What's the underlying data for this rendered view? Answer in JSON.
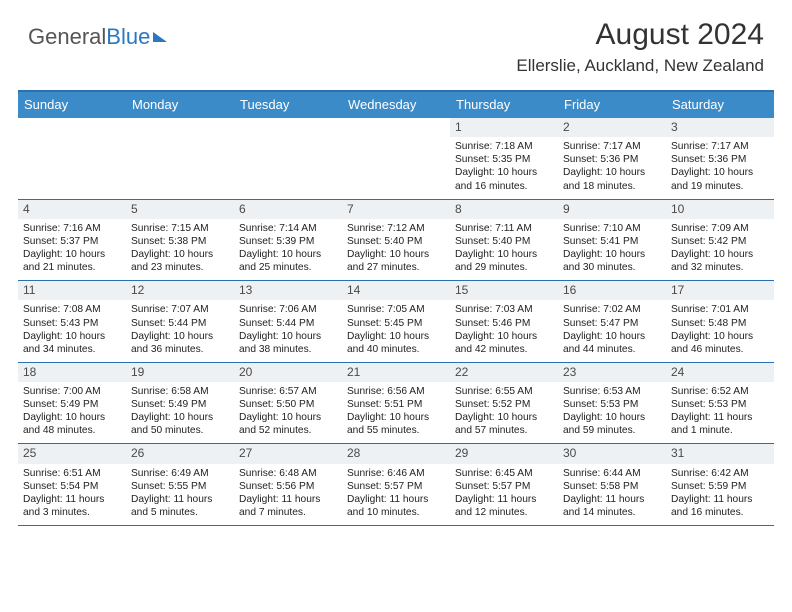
{
  "logo": {
    "part1": "General",
    "part2": "Blue"
  },
  "title": "August 2024",
  "location": "Ellerslie, Auckland, New Zealand",
  "colors": {
    "header_bg": "#3b8bc9",
    "header_border": "#2a6fb0",
    "daynum_bg": "#eef1f3",
    "text": "#222222",
    "logo_blue": "#2a78c0"
  },
  "day_names": [
    "Sunday",
    "Monday",
    "Tuesday",
    "Wednesday",
    "Thursday",
    "Friday",
    "Saturday"
  ],
  "weeks": [
    [
      {
        "n": "",
        "sr": "",
        "ss": "",
        "dl": ""
      },
      {
        "n": "",
        "sr": "",
        "ss": "",
        "dl": ""
      },
      {
        "n": "",
        "sr": "",
        "ss": "",
        "dl": ""
      },
      {
        "n": "",
        "sr": "",
        "ss": "",
        "dl": ""
      },
      {
        "n": "1",
        "sr": "Sunrise: 7:18 AM",
        "ss": "Sunset: 5:35 PM",
        "dl": "Daylight: 10 hours and 16 minutes."
      },
      {
        "n": "2",
        "sr": "Sunrise: 7:17 AM",
        "ss": "Sunset: 5:36 PM",
        "dl": "Daylight: 10 hours and 18 minutes."
      },
      {
        "n": "3",
        "sr": "Sunrise: 7:17 AM",
        "ss": "Sunset: 5:36 PM",
        "dl": "Daylight: 10 hours and 19 minutes."
      }
    ],
    [
      {
        "n": "4",
        "sr": "Sunrise: 7:16 AM",
        "ss": "Sunset: 5:37 PM",
        "dl": "Daylight: 10 hours and 21 minutes."
      },
      {
        "n": "5",
        "sr": "Sunrise: 7:15 AM",
        "ss": "Sunset: 5:38 PM",
        "dl": "Daylight: 10 hours and 23 minutes."
      },
      {
        "n": "6",
        "sr": "Sunrise: 7:14 AM",
        "ss": "Sunset: 5:39 PM",
        "dl": "Daylight: 10 hours and 25 minutes."
      },
      {
        "n": "7",
        "sr": "Sunrise: 7:12 AM",
        "ss": "Sunset: 5:40 PM",
        "dl": "Daylight: 10 hours and 27 minutes."
      },
      {
        "n": "8",
        "sr": "Sunrise: 7:11 AM",
        "ss": "Sunset: 5:40 PM",
        "dl": "Daylight: 10 hours and 29 minutes."
      },
      {
        "n": "9",
        "sr": "Sunrise: 7:10 AM",
        "ss": "Sunset: 5:41 PM",
        "dl": "Daylight: 10 hours and 30 minutes."
      },
      {
        "n": "10",
        "sr": "Sunrise: 7:09 AM",
        "ss": "Sunset: 5:42 PM",
        "dl": "Daylight: 10 hours and 32 minutes."
      }
    ],
    [
      {
        "n": "11",
        "sr": "Sunrise: 7:08 AM",
        "ss": "Sunset: 5:43 PM",
        "dl": "Daylight: 10 hours and 34 minutes."
      },
      {
        "n": "12",
        "sr": "Sunrise: 7:07 AM",
        "ss": "Sunset: 5:44 PM",
        "dl": "Daylight: 10 hours and 36 minutes."
      },
      {
        "n": "13",
        "sr": "Sunrise: 7:06 AM",
        "ss": "Sunset: 5:44 PM",
        "dl": "Daylight: 10 hours and 38 minutes."
      },
      {
        "n": "14",
        "sr": "Sunrise: 7:05 AM",
        "ss": "Sunset: 5:45 PM",
        "dl": "Daylight: 10 hours and 40 minutes."
      },
      {
        "n": "15",
        "sr": "Sunrise: 7:03 AM",
        "ss": "Sunset: 5:46 PM",
        "dl": "Daylight: 10 hours and 42 minutes."
      },
      {
        "n": "16",
        "sr": "Sunrise: 7:02 AM",
        "ss": "Sunset: 5:47 PM",
        "dl": "Daylight: 10 hours and 44 minutes."
      },
      {
        "n": "17",
        "sr": "Sunrise: 7:01 AM",
        "ss": "Sunset: 5:48 PM",
        "dl": "Daylight: 10 hours and 46 minutes."
      }
    ],
    [
      {
        "n": "18",
        "sr": "Sunrise: 7:00 AM",
        "ss": "Sunset: 5:49 PM",
        "dl": "Daylight: 10 hours and 48 minutes."
      },
      {
        "n": "19",
        "sr": "Sunrise: 6:58 AM",
        "ss": "Sunset: 5:49 PM",
        "dl": "Daylight: 10 hours and 50 minutes."
      },
      {
        "n": "20",
        "sr": "Sunrise: 6:57 AM",
        "ss": "Sunset: 5:50 PM",
        "dl": "Daylight: 10 hours and 52 minutes."
      },
      {
        "n": "21",
        "sr": "Sunrise: 6:56 AM",
        "ss": "Sunset: 5:51 PM",
        "dl": "Daylight: 10 hours and 55 minutes."
      },
      {
        "n": "22",
        "sr": "Sunrise: 6:55 AM",
        "ss": "Sunset: 5:52 PM",
        "dl": "Daylight: 10 hours and 57 minutes."
      },
      {
        "n": "23",
        "sr": "Sunrise: 6:53 AM",
        "ss": "Sunset: 5:53 PM",
        "dl": "Daylight: 10 hours and 59 minutes."
      },
      {
        "n": "24",
        "sr": "Sunrise: 6:52 AM",
        "ss": "Sunset: 5:53 PM",
        "dl": "Daylight: 11 hours and 1 minute."
      }
    ],
    [
      {
        "n": "25",
        "sr": "Sunrise: 6:51 AM",
        "ss": "Sunset: 5:54 PM",
        "dl": "Daylight: 11 hours and 3 minutes."
      },
      {
        "n": "26",
        "sr": "Sunrise: 6:49 AM",
        "ss": "Sunset: 5:55 PM",
        "dl": "Daylight: 11 hours and 5 minutes."
      },
      {
        "n": "27",
        "sr": "Sunrise: 6:48 AM",
        "ss": "Sunset: 5:56 PM",
        "dl": "Daylight: 11 hours and 7 minutes."
      },
      {
        "n": "28",
        "sr": "Sunrise: 6:46 AM",
        "ss": "Sunset: 5:57 PM",
        "dl": "Daylight: 11 hours and 10 minutes."
      },
      {
        "n": "29",
        "sr": "Sunrise: 6:45 AM",
        "ss": "Sunset: 5:57 PM",
        "dl": "Daylight: 11 hours and 12 minutes."
      },
      {
        "n": "30",
        "sr": "Sunrise: 6:44 AM",
        "ss": "Sunset: 5:58 PM",
        "dl": "Daylight: 11 hours and 14 minutes."
      },
      {
        "n": "31",
        "sr": "Sunrise: 6:42 AM",
        "ss": "Sunset: 5:59 PM",
        "dl": "Daylight: 11 hours and 16 minutes."
      }
    ]
  ]
}
